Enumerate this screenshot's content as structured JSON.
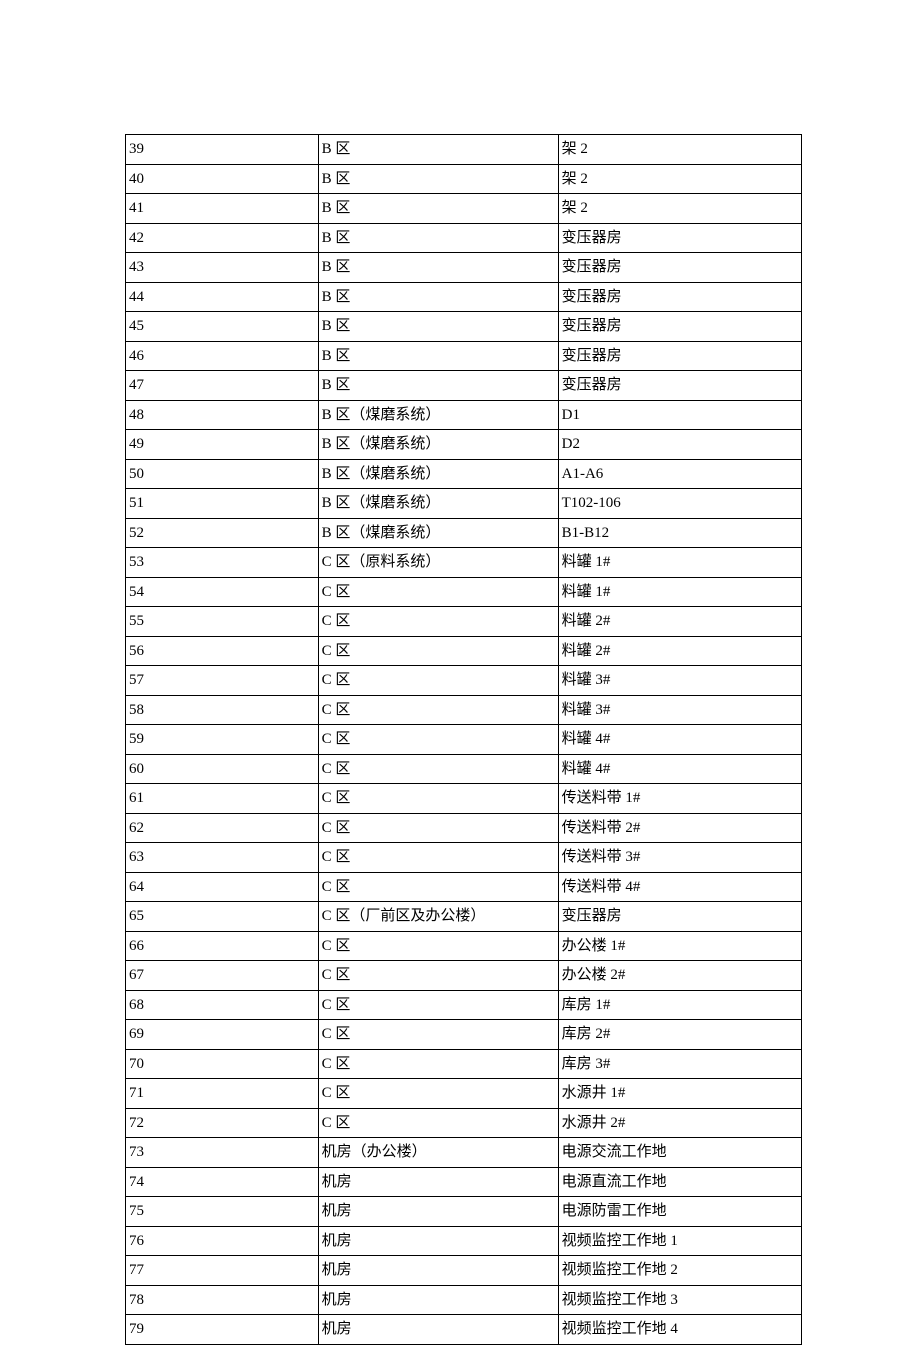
{
  "table": {
    "columns": [
      {
        "width": "28.5%"
      },
      {
        "width": "35.5%"
      },
      {
        "width": "36%"
      }
    ],
    "border_color": "#000000",
    "background_color": "#ffffff",
    "text_color": "#000000",
    "font_size": 15,
    "rows": [
      [
        "39",
        "B 区",
        "架 2"
      ],
      [
        "40",
        "B 区",
        "架 2"
      ],
      [
        "41",
        "B 区",
        "架 2"
      ],
      [
        "42",
        "B 区",
        "变压器房"
      ],
      [
        "43",
        "B 区",
        "变压器房"
      ],
      [
        "44",
        "B 区",
        "变压器房"
      ],
      [
        "45",
        "B 区",
        "变压器房"
      ],
      [
        "46",
        "B 区",
        "变压器房"
      ],
      [
        "47",
        "B 区",
        "变压器房"
      ],
      [
        "48",
        "B 区（煤磨系统）",
        "D1"
      ],
      [
        "49",
        "B 区（煤磨系统）",
        "D2"
      ],
      [
        "50",
        "B 区（煤磨系统）",
        "A1-A6"
      ],
      [
        "51",
        "B 区（煤磨系统）",
        "T102-106"
      ],
      [
        "52",
        "B 区（煤磨系统）",
        "B1-B12"
      ],
      [
        "53",
        "C 区（原料系统）",
        "料罐 1#"
      ],
      [
        "54",
        "C 区",
        "料罐 1#"
      ],
      [
        "55",
        "C 区",
        "料罐 2#"
      ],
      [
        "56",
        "C 区",
        "料罐 2#"
      ],
      [
        "57",
        "C 区",
        "料罐 3#"
      ],
      [
        "58",
        "C 区",
        "料罐 3#"
      ],
      [
        "59",
        "C 区",
        "料罐 4#"
      ],
      [
        "60",
        "C 区",
        "料罐 4#"
      ],
      [
        "61",
        "C 区",
        "传送料带 1#"
      ],
      [
        "62",
        "C 区",
        "传送料带 2#"
      ],
      [
        "63",
        "C 区",
        "传送料带 3#"
      ],
      [
        "64",
        "C 区",
        "传送料带 4#"
      ],
      [
        "65",
        "C 区（厂前区及办公楼）",
        "变压器房"
      ],
      [
        "66",
        "C 区",
        "办公楼 1#"
      ],
      [
        "67",
        "C 区",
        "办公楼 2#"
      ],
      [
        "68",
        "C 区",
        "库房 1#"
      ],
      [
        "69",
        "C 区",
        "库房 2#"
      ],
      [
        "70",
        "C 区",
        "库房 3#"
      ],
      [
        "71",
        "C 区",
        "水源井 1#"
      ],
      [
        "72",
        "C 区",
        "水源井 2#"
      ],
      [
        "73",
        "机房（办公楼）",
        "电源交流工作地"
      ],
      [
        "74",
        "机房",
        "电源直流工作地"
      ],
      [
        "75",
        "机房",
        "电源防雷工作地"
      ],
      [
        "76",
        "机房",
        "视频监控工作地 1"
      ],
      [
        "77",
        "机房",
        "视频监控工作地 2"
      ],
      [
        "78",
        "机房",
        "视频监控工作地 3"
      ],
      [
        "79",
        "机房",
        "视频监控工作地 4"
      ]
    ]
  }
}
